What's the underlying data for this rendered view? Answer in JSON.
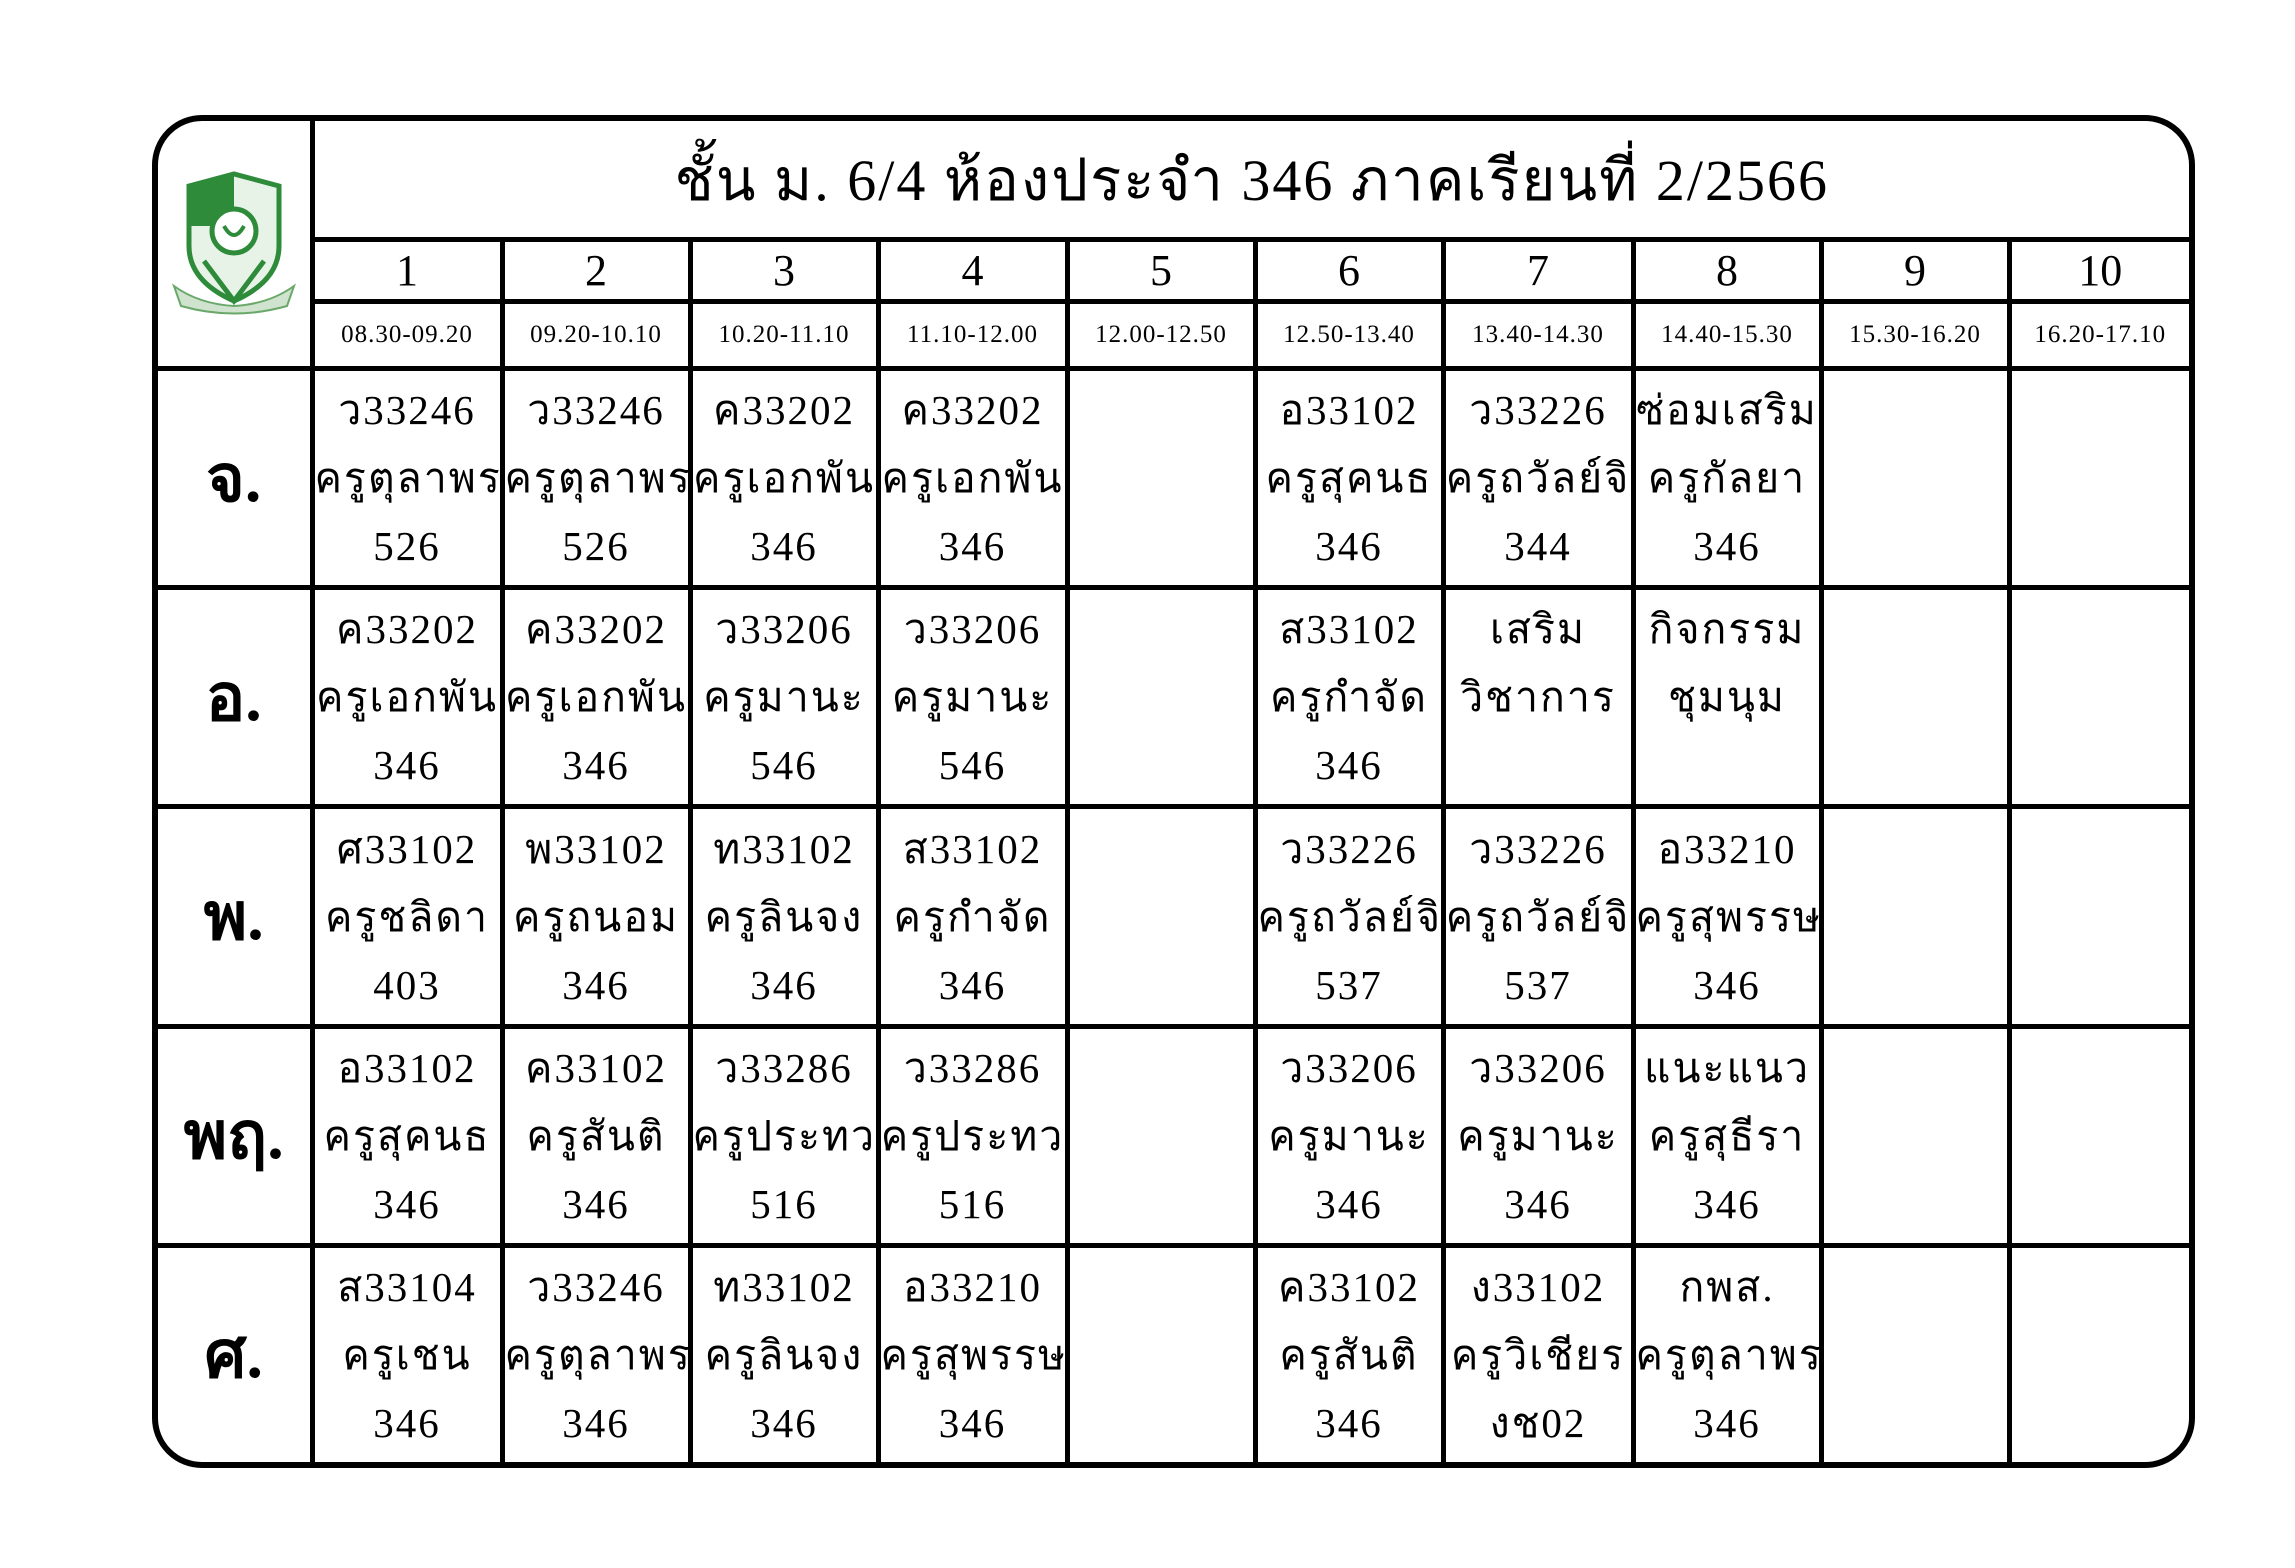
{
  "title": "ชั้น ม. 6/4 ห้องประจำ 346 ภาคเรียนที่ 2/2566",
  "logo": {
    "color": "#2e8b3a"
  },
  "periods": [
    "1",
    "2",
    "3",
    "4",
    "5",
    "6",
    "7",
    "8",
    "9",
    "10"
  ],
  "times": [
    "08.30-09.20",
    "09.20-10.10",
    "10.20-11.10",
    "11.10-12.00",
    "12.00-12.50",
    "12.50-13.40",
    "13.40-14.30",
    "14.40-15.30",
    "15.30-16.20",
    "16.20-17.10"
  ],
  "rows": [
    {
      "day": "จ.",
      "cells": [
        [
          "ว33246",
          "ครูตุลาพร",
          "526"
        ],
        [
          "ว33246",
          "ครูตุลาพร",
          "526"
        ],
        [
          "ค33202",
          "ครูเอกพัน",
          "346"
        ],
        [
          "ค33202",
          "ครูเอกพัน",
          "346"
        ],
        [
          "",
          "",
          ""
        ],
        [
          "อ33102",
          "ครูสุคนธ",
          "346"
        ],
        [
          "ว33226",
          "ครูถวัลย์จิ",
          "344"
        ],
        [
          "ซ่อมเสริม",
          "ครูกัลยา",
          "346"
        ],
        [
          "",
          "",
          ""
        ],
        [
          "",
          "",
          ""
        ]
      ]
    },
    {
      "day": "อ.",
      "cells": [
        [
          "ค33202",
          "ครูเอกพัน",
          "346"
        ],
        [
          "ค33202",
          "ครูเอกพัน",
          "346"
        ],
        [
          "ว33206",
          "ครูมานะ",
          "546"
        ],
        [
          "ว33206",
          "ครูมานะ",
          "546"
        ],
        [
          "",
          "",
          ""
        ],
        [
          "ส33102",
          "ครูกำจัด",
          "346"
        ],
        [
          "เสริม",
          "วิชาการ",
          ""
        ],
        [
          "กิจกรรม",
          "ชุมนุม",
          ""
        ],
        [
          "",
          "",
          ""
        ],
        [
          "",
          "",
          ""
        ]
      ]
    },
    {
      "day": "พ.",
      "cells": [
        [
          "ศ33102",
          "ครูชลิดา",
          "403"
        ],
        [
          "พ33102",
          "ครูถนอม",
          "346"
        ],
        [
          "ท33102",
          "ครูลินจง",
          "346"
        ],
        [
          "ส33102",
          "ครูกำจัด",
          "346"
        ],
        [
          "",
          "",
          ""
        ],
        [
          "ว33226",
          "ครูถวัลย์จิ",
          "537"
        ],
        [
          "ว33226",
          "ครูถวัลย์จิ",
          "537"
        ],
        [
          "อ33210",
          "ครูสุพรรษ",
          "346"
        ],
        [
          "",
          "",
          ""
        ],
        [
          "",
          "",
          ""
        ]
      ]
    },
    {
      "day": "พฤ.",
      "cells": [
        [
          "อ33102",
          "ครูสุคนธ",
          "346"
        ],
        [
          "ค33102",
          "ครูสันติ",
          "346"
        ],
        [
          "ว33286",
          "ครูประทว",
          "516"
        ],
        [
          "ว33286",
          "ครูประทว",
          "516"
        ],
        [
          "",
          "",
          ""
        ],
        [
          "ว33206",
          "ครูมานะ",
          "346"
        ],
        [
          "ว33206",
          "ครูมานะ",
          "346"
        ],
        [
          "แนะแนว",
          "ครูสุธีรา",
          "346"
        ],
        [
          "",
          "",
          ""
        ],
        [
          "",
          "",
          ""
        ]
      ]
    },
    {
      "day": "ศ.",
      "cells": [
        [
          "ส33104",
          "ครูเชน",
          "346"
        ],
        [
          "ว33246",
          "ครูตุลาพร",
          "346"
        ],
        [
          "ท33102",
          "ครูลินจง",
          "346"
        ],
        [
          "อ33210",
          "ครูสุพรรษ",
          "346"
        ],
        [
          "",
          "",
          ""
        ],
        [
          "ค33102",
          "ครูสันติ",
          "346"
        ],
        [
          "ง33102",
          "ครูวิเชียร",
          "งช02"
        ],
        [
          "กพส.",
          "ครูตุลาพร",
          "346"
        ],
        [
          "",
          "",
          ""
        ],
        [
          "",
          "",
          ""
        ]
      ]
    }
  ]
}
